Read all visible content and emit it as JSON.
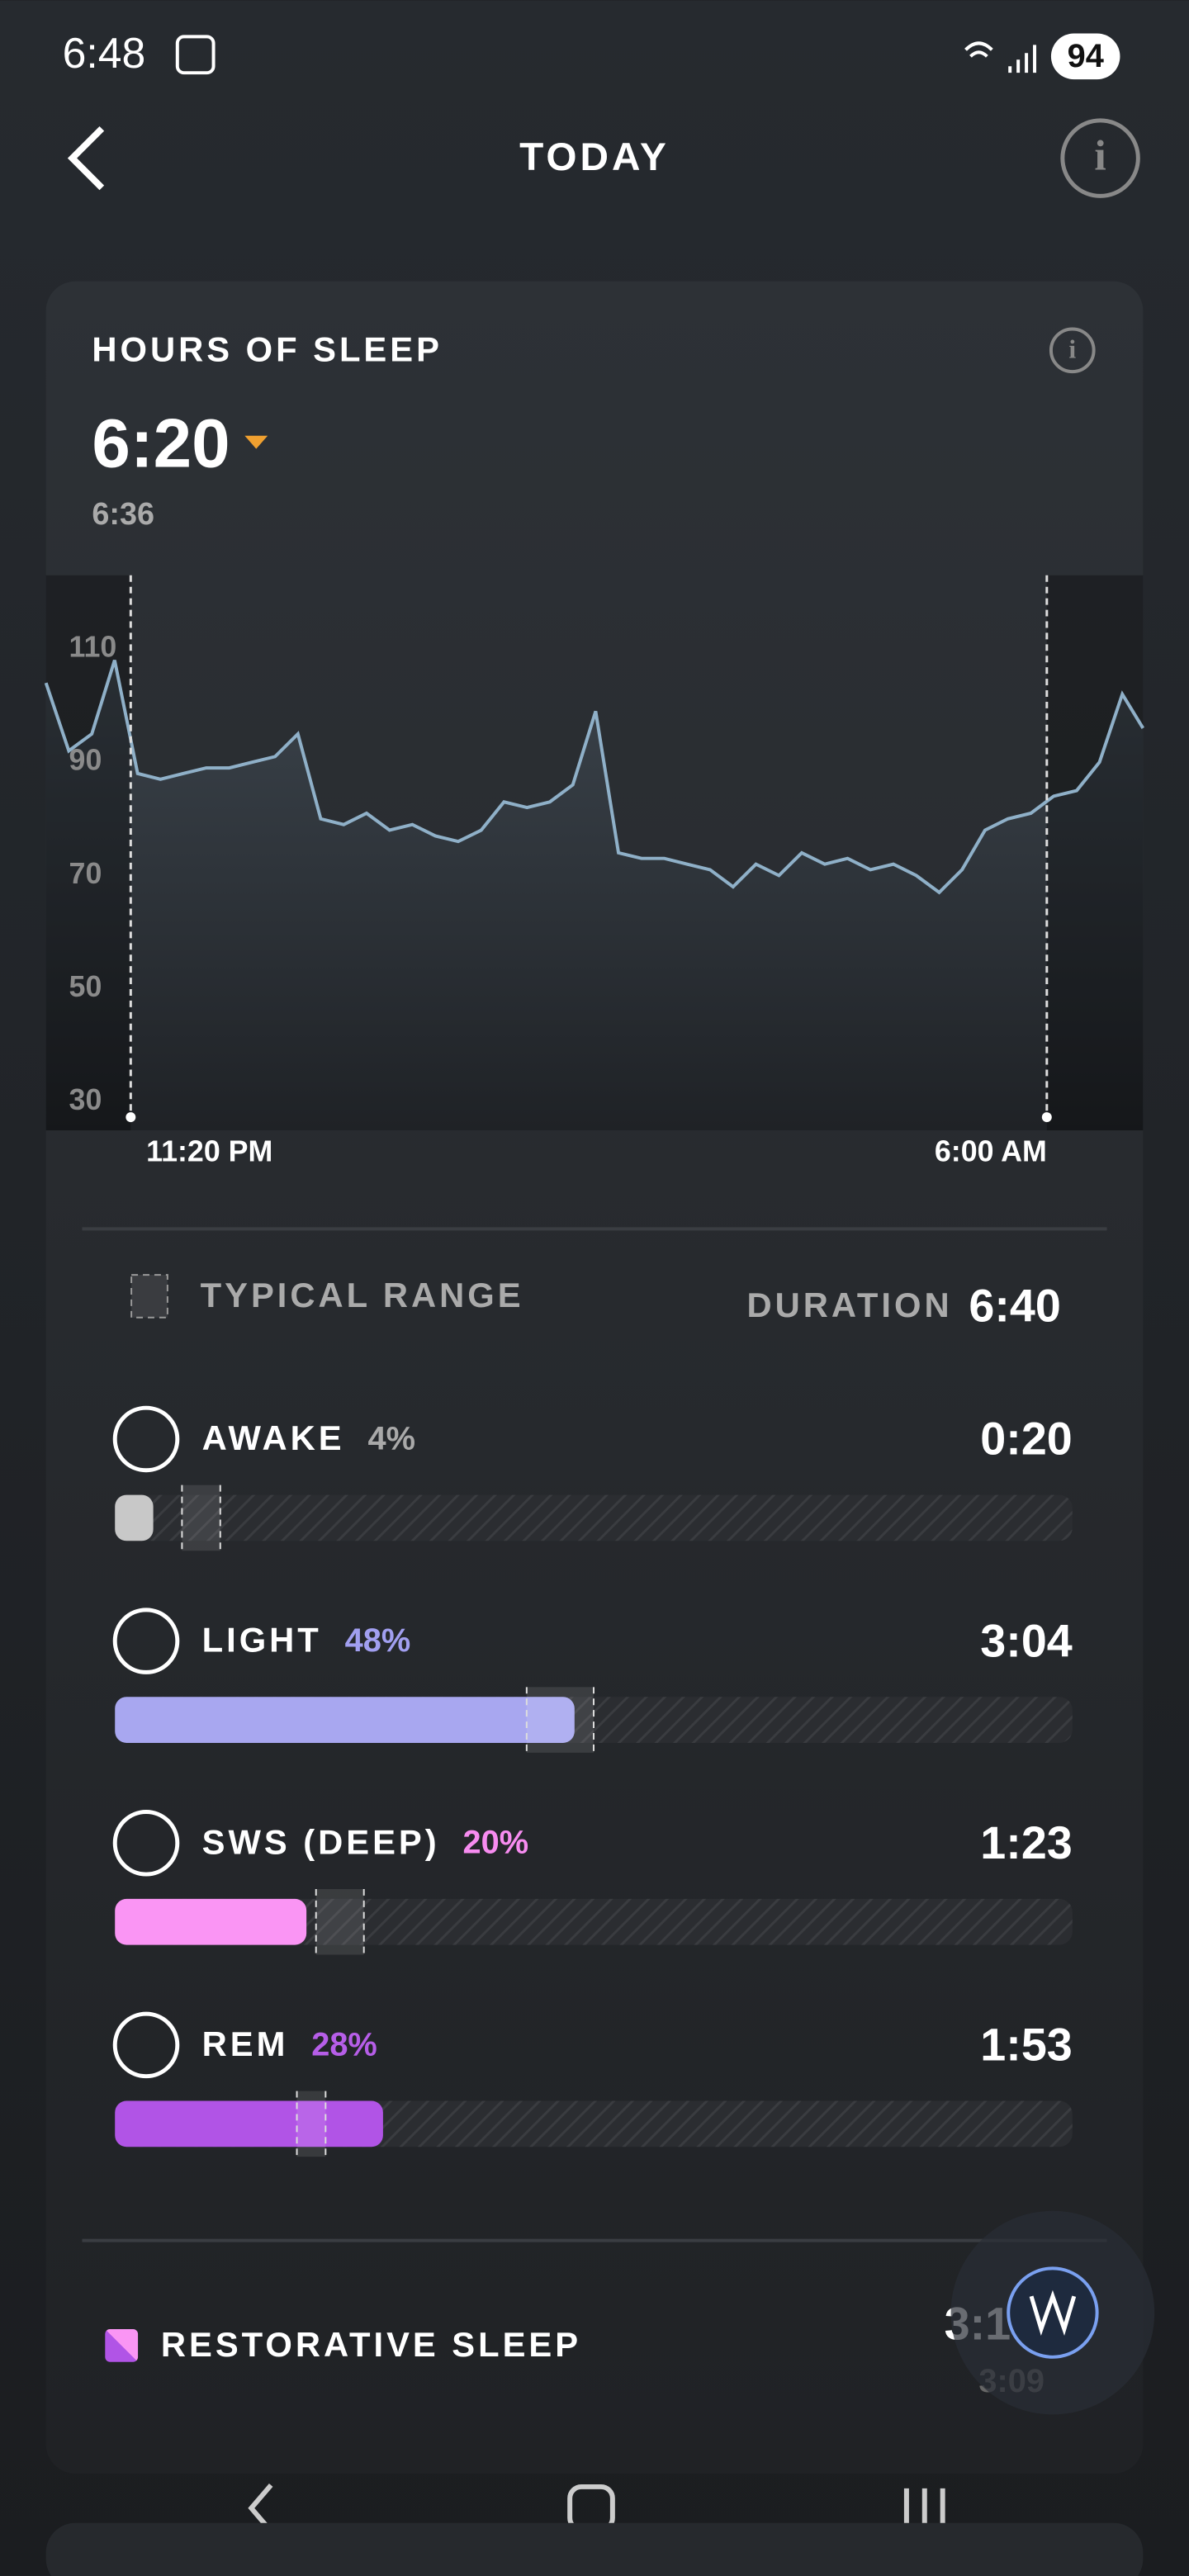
{
  "status_bar": {
    "time": "6:48",
    "battery": "94"
  },
  "header": {
    "title": "TODAY"
  },
  "card": {
    "title": "HOURS OF SLEEP",
    "value": "6:20",
    "previous": "6:36"
  },
  "chart_data": {
    "type": "line",
    "color": "#8fb0c8",
    "x": [
      -37,
      -27,
      -17,
      -7,
      3,
      13,
      23,
      33,
      43,
      53,
      63,
      73,
      83,
      93,
      103,
      113,
      123,
      133,
      143,
      153,
      163,
      173,
      183,
      193,
      203,
      213,
      223,
      233,
      243,
      253,
      263,
      273,
      283,
      293,
      303,
      313,
      323,
      333,
      343,
      353,
      363,
      373,
      383,
      393,
      403,
      413,
      423,
      433,
      442
    ],
    "values": [
      104,
      92,
      95,
      108,
      88,
      87,
      88,
      89,
      89,
      90,
      91,
      95,
      80,
      79,
      81,
      78,
      79,
      77,
      76,
      78,
      83,
      82,
      83,
      86,
      99,
      74,
      73,
      73,
      72,
      71,
      68,
      72,
      70,
      74,
      72,
      73,
      71,
      72,
      70,
      67,
      71,
      78,
      80,
      81,
      84,
      85,
      90,
      102,
      96
    ],
    "xlim": [
      -37,
      442
    ],
    "xticks": [
      {
        "value": 0,
        "label": "11:20 PM"
      },
      {
        "value": 400,
        "label": "6:00 AM"
      }
    ],
    "ylim": [
      25,
      123
    ],
    "yticks": [
      30,
      50,
      70,
      90,
      110
    ]
  },
  "legend": {
    "typical_range": "TYPICAL RANGE",
    "duration_label": "DURATION",
    "duration": "6:40"
  },
  "stages": [
    {
      "name": "AWAKE",
      "percent": 4,
      "percent_label": "4%",
      "duration": "0:20",
      "typical_range": [
        7,
        11
      ],
      "color": "#c8c8c8",
      "label_color": "#a9a9a9"
    },
    {
      "name": "LIGHT",
      "percent": 48,
      "percent_label": "48%",
      "duration": "3:04",
      "typical_range": [
        43,
        50
      ],
      "color": "#a8a7f0",
      "label_color": "#a19ff0"
    },
    {
      "name": "SWS (DEEP)",
      "percent": 20,
      "percent_label": "20%",
      "duration": "1:23",
      "typical_range": [
        21,
        26
      ],
      "color": "#fa95f4",
      "label_color": "#f78cf0"
    },
    {
      "name": "REM",
      "percent": 28,
      "percent_label": "28%",
      "duration": "1:53",
      "typical_range": [
        19,
        22
      ],
      "color": "#b154e6",
      "label_color": "#b65ee8"
    }
  ],
  "restorative": {
    "label": "RESTORATIVE SLEEP",
    "value": "3:1",
    "previous": "3:09"
  }
}
